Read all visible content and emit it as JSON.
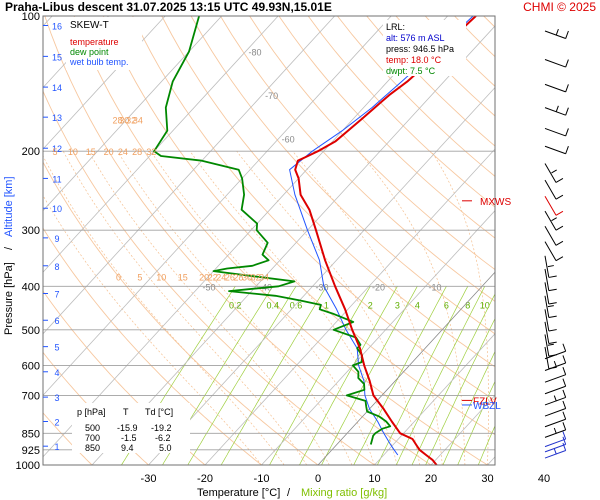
{
  "header": {
    "title": "Praha-Libus   descent   31.07.2025 13:15 UTC   49.93N,15.01E",
    "copyright": "CHMI © 2025"
  },
  "chart_data": {
    "type": "skew-t",
    "axes": {
      "x_label": "Temperature [°C]",
      "x_label_sep": "/",
      "x_label_2": "Mixing ratio [g/kg]",
      "y_label": "Pressure [hPa]",
      "y_label_sep": "/",
      "y_label_2": "Altitude [km]",
      "temperature_ticks": [
        -30,
        -20,
        -10,
        0,
        10,
        20,
        30,
        40
      ],
      "pressure_ticks": [
        100,
        200,
        300,
        400,
        500,
        600,
        700,
        850,
        925,
        1000
      ],
      "pressure_range": [
        1000,
        100
      ],
      "altitude_ticks_km": [
        1,
        2,
        3,
        4,
        5,
        6,
        7,
        8,
        9,
        10,
        11,
        12,
        13,
        14,
        15,
        16
      ],
      "altitude_tick_pressures_hPa": [
        908,
        800,
        706,
        620,
        545,
        476,
        415,
        360,
        312,
        268,
        230,
        197,
        168,
        144,
        123,
        105
      ]
    },
    "legend": {
      "title": "SKEW-T",
      "items": [
        {
          "label": "temperature",
          "color": "#dd0000"
        },
        {
          "label": "dew point",
          "color": "#008800"
        },
        {
          "label": "wet bulb temp.",
          "color": "#2255ff"
        }
      ]
    },
    "lrl_box": {
      "title": "LRL:",
      "alt": "alt: 576 m ASL",
      "press": "press: 946.5 hPa",
      "temp": "temp: 18.0 °C",
      "dwpt": "dwpt: 7.5 °C"
    },
    "table": {
      "headers": [
        "p [hPa]",
        "T",
        "Td [°C]"
      ],
      "rows": [
        [
          "500",
          "-15.9",
          "-19.2"
        ],
        [
          "700",
          "-1.5",
          "-6.2"
        ],
        [
          "850",
          "9.4",
          "5.0"
        ]
      ]
    },
    "isotherm_labels": [
      -80,
      -70,
      -60,
      -50,
      -40,
      -30,
      -20,
      -10
    ],
    "theta_labels_upper": [
      5,
      10,
      15,
      20,
      24,
      28,
      32
    ],
    "theta_labels_upper_right": [
      28,
      30,
      32,
      34
    ],
    "theta_labels_lower": [
      0,
      5,
      10,
      15,
      20,
      22,
      24,
      26,
      28,
      30,
      32,
      34
    ],
    "mixing_ratio_labels": [
      "0.2",
      "0.4",
      "0.6",
      "1",
      "2",
      "3",
      "4",
      "6",
      "8",
      "10",
      "12",
      "14",
      "17",
      "20",
      "25"
    ],
    "mixing_ratio_values": [
      0.2,
      0.4,
      0.6,
      1,
      2,
      3,
      4,
      6,
      8,
      10,
      12,
      14,
      17,
      20,
      25
    ],
    "markers": [
      {
        "label": "MXWS",
        "p": 258
      },
      {
        "label": "FZLV",
        "p": 718
      },
      {
        "label": "WBZL",
        "p": 735
      }
    ],
    "series": [
      {
        "name": "temperature",
        "points": [
          [
            1000,
            21
          ],
          [
            975,
            19.5
          ],
          [
            950,
            17.5
          ],
          [
            925,
            15.5
          ],
          [
            900,
            14
          ],
          [
            875,
            12.5
          ],
          [
            850,
            9.4
          ],
          [
            800,
            6
          ],
          [
            750,
            2.5
          ],
          [
            700,
            -1.5
          ],
          [
            650,
            -4.5
          ],
          [
            600,
            -8
          ],
          [
            550,
            -11.5
          ],
          [
            500,
            -15.9
          ],
          [
            450,
            -20.5
          ],
          [
            400,
            -26
          ],
          [
            350,
            -32
          ],
          [
            300,
            -38.5
          ],
          [
            270,
            -43
          ],
          [
            250,
            -47
          ],
          [
            230,
            -50
          ],
          [
            220,
            -52
          ],
          [
            210,
            -53
          ],
          [
            205,
            -52
          ],
          [
            200,
            -51
          ],
          [
            190,
            -49.5
          ],
          [
            180,
            -49
          ],
          [
            170,
            -48.5
          ],
          [
            160,
            -48
          ],
          [
            150,
            -47.5
          ],
          [
            140,
            -46.5
          ],
          [
            130,
            -46
          ],
          [
            120,
            -46
          ],
          [
            110,
            -45.5
          ],
          [
            100,
            -45
          ]
        ]
      },
      {
        "name": "dew point",
        "points": [
          [
            900,
            6
          ],
          [
            880,
            5.5
          ],
          [
            860,
            5
          ],
          [
            850,
            5
          ],
          [
            830,
            5.5
          ],
          [
            820,
            6.5
          ],
          [
            800,
            5
          ],
          [
            780,
            3
          ],
          [
            760,
            0
          ],
          [
            740,
            -1
          ],
          [
            720,
            -2
          ],
          [
            700,
            -6.2
          ],
          [
            680,
            -4
          ],
          [
            660,
            -5
          ],
          [
            640,
            -7
          ],
          [
            620,
            -8
          ],
          [
            600,
            -10
          ],
          [
            590,
            -9
          ],
          [
            570,
            -10
          ],
          [
            550,
            -12
          ],
          [
            540,
            -12
          ],
          [
            520,
            -14
          ],
          [
            500,
            -19.2
          ],
          [
            480,
            -17
          ],
          [
            460,
            -22
          ],
          [
            450,
            -25
          ],
          [
            440,
            -25.5
          ],
          [
            430,
            -30
          ],
          [
            420,
            -35
          ],
          [
            410,
            -44
          ],
          [
            400,
            -36
          ],
          [
            390,
            -34
          ],
          [
            380,
            -42
          ],
          [
            370,
            -50
          ],
          [
            365,
            -48
          ],
          [
            360,
            -44
          ],
          [
            350,
            -42
          ],
          [
            340,
            -44
          ],
          [
            320,
            -45
          ],
          [
            300,
            -49
          ],
          [
            290,
            -50
          ],
          [
            270,
            -55
          ],
          [
            250,
            -57
          ],
          [
            230,
            -60
          ],
          [
            220,
            -62
          ],
          [
            210,
            -70
          ],
          [
            205,
            -78
          ],
          [
            200,
            -80
          ],
          [
            180,
            -81
          ],
          [
            160,
            -85
          ],
          [
            140,
            -88
          ],
          [
            120,
            -90
          ],
          [
            100,
            -94
          ]
        ]
      },
      {
        "name": "wet bulb temp.",
        "points": [
          [
            950,
            12.5
          ],
          [
            925,
            11
          ],
          [
            900,
            9.5
          ],
          [
            850,
            6.5
          ],
          [
            800,
            3.5
          ],
          [
            750,
            0
          ],
          [
            700,
            -3
          ],
          [
            650,
            -5.5
          ],
          [
            600,
            -9
          ],
          [
            550,
            -12
          ],
          [
            500,
            -17
          ],
          [
            450,
            -22
          ],
          [
            400,
            -28
          ],
          [
            350,
            -33
          ],
          [
            300,
            -40
          ],
          [
            250,
            -48
          ],
          [
            220,
            -53
          ],
          [
            200,
            -52
          ],
          [
            180,
            -50
          ],
          [
            160,
            -48.5
          ],
          [
            140,
            -47.5
          ],
          [
            120,
            -46.5
          ],
          [
            100,
            -45.5
          ]
        ]
      }
    ],
    "wind_barbs_pressures_hPa": [
      108,
      125,
      142,
      160,
      178,
      195,
      213,
      232,
      252,
      272,
      294,
      318,
      342,
      366,
      392,
      420,
      450,
      480,
      512,
      546,
      580,
      616,
      654,
      694,
      735,
      778,
      822,
      868,
      910,
      935,
      965
    ]
  }
}
